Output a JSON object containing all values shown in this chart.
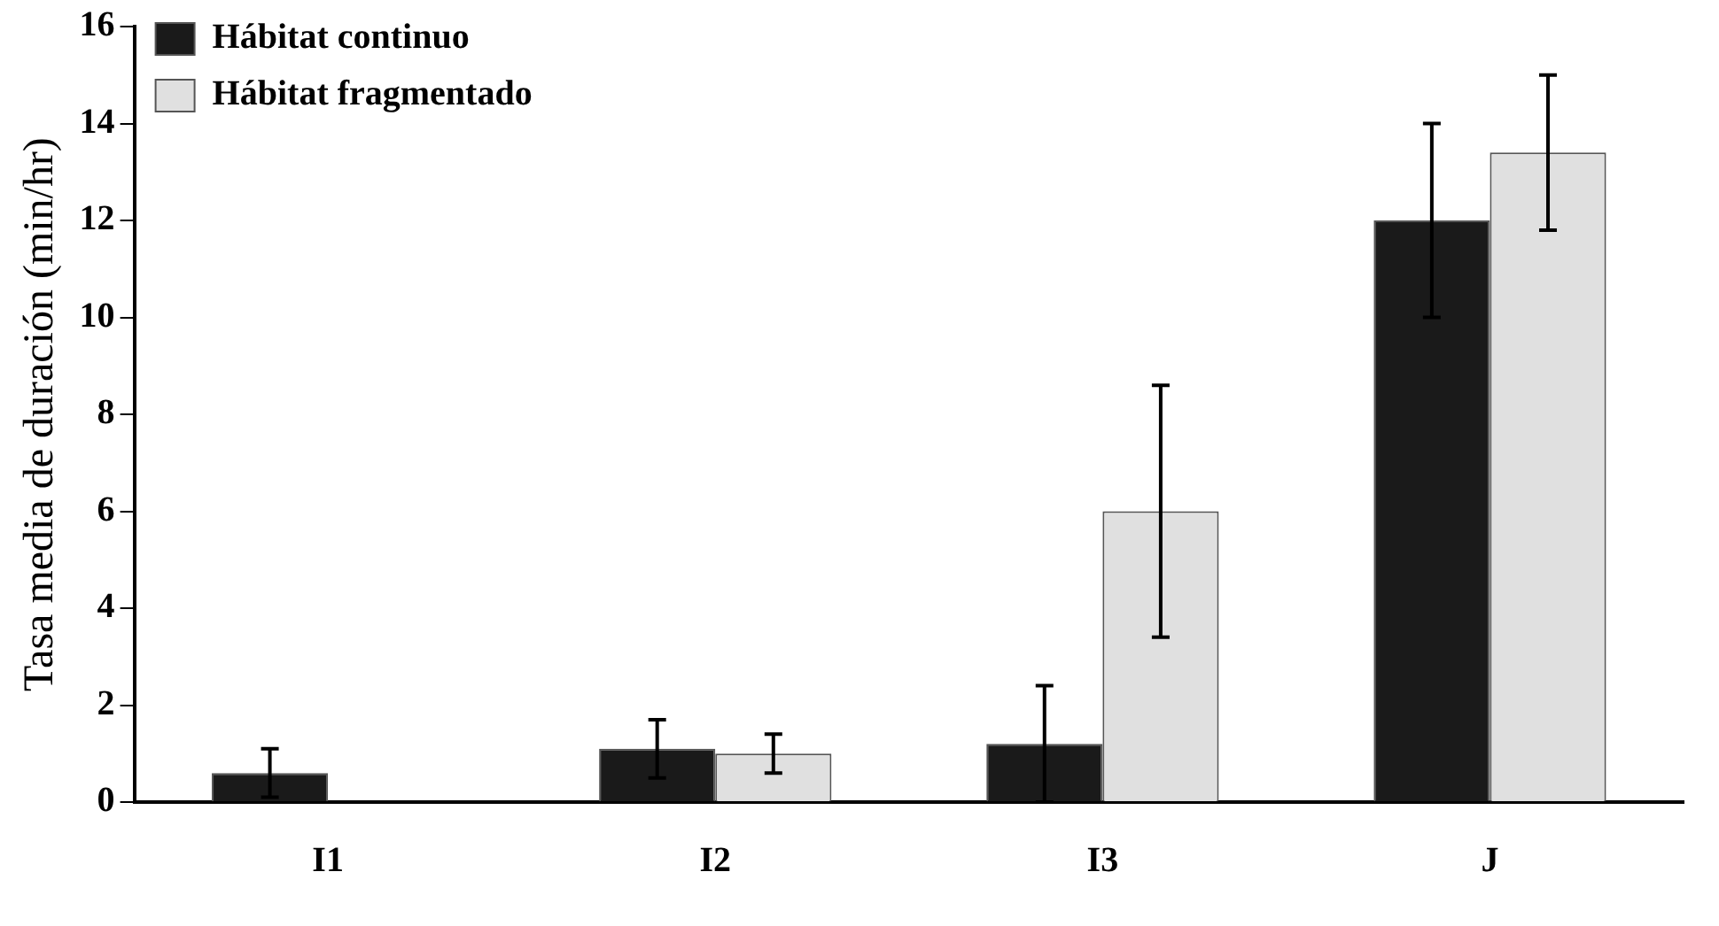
{
  "chart_data": {
    "type": "bar",
    "ylabel": "Tasa media de duración (min/hr)",
    "categories": [
      "I1",
      "I2",
      "I3",
      "J"
    ],
    "series": [
      {
        "name": "Hábitat continuo",
        "color": "#1a1a1a",
        "values": [
          0.6,
          1.1,
          1.2,
          12.0
        ],
        "errors": [
          0.5,
          0.6,
          1.2,
          2.0
        ]
      },
      {
        "name": "Hábitat fragmentado",
        "color": "#e0e0e0",
        "values": [
          0,
          1.0,
          6.0,
          13.4
        ],
        "errors": [
          null,
          0.4,
          2.6,
          1.6
        ]
      }
    ],
    "ylim": [
      0,
      16
    ],
    "yticks": [
      0,
      2,
      4,
      6,
      8,
      10,
      12,
      14,
      16
    ],
    "grid": false,
    "legend": "top left"
  }
}
